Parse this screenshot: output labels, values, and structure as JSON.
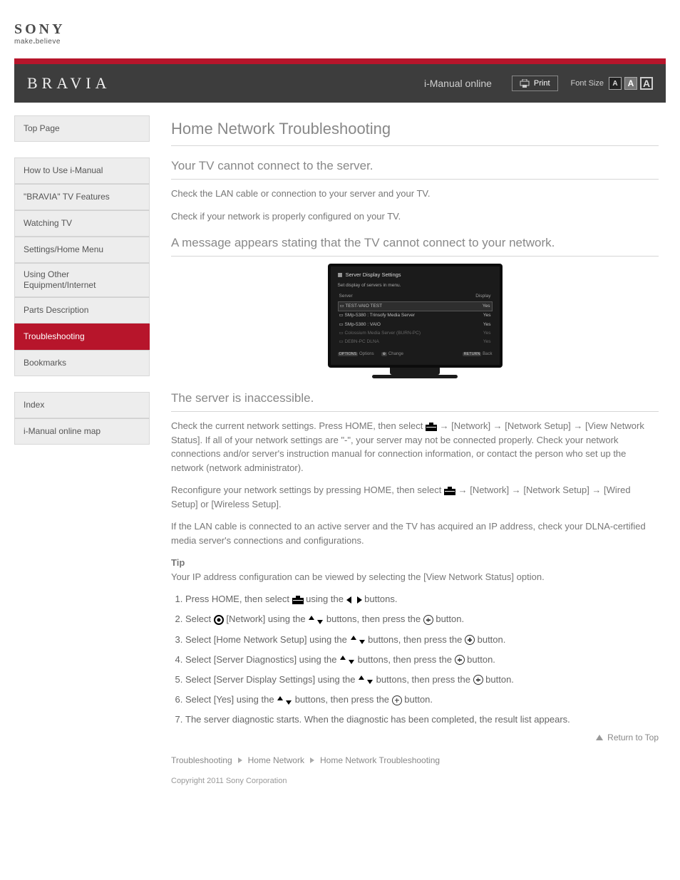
{
  "brand": {
    "name": "SONY",
    "tagline_pre": "make",
    "tagline_dot": ".",
    "tagline_post": "believe"
  },
  "header": {
    "product": "BRAVIA",
    "imanual": "i-Manual online",
    "print": "Print",
    "font_label": "Font Size",
    "font_a": "A"
  },
  "colors": {
    "brand_red": "#b7152b",
    "bar_grey": "#3d3d3d",
    "text_grey": "#666666"
  },
  "sidebar": {
    "top": [
      {
        "label": "Top Page"
      }
    ],
    "toc": [
      {
        "label": "How to Use i-Manual"
      },
      {
        "label": "\"BRAVIA\" TV Features"
      },
      {
        "label": "Watching TV"
      },
      {
        "label": "Settings/Home Menu"
      },
      {
        "label": "Using Other Equipment/Internet"
      },
      {
        "label": "Parts Description"
      },
      {
        "label": "Troubleshooting",
        "active": true
      },
      {
        "label": "Bookmarks"
      }
    ],
    "aux": [
      {
        "label": "Index"
      },
      {
        "label": "i-Manual online map"
      }
    ]
  },
  "main": {
    "title": "Home Network Troubleshooting",
    "sections": [
      {
        "heading": "Your TV cannot connect to the server.",
        "paras": [
          "Check the LAN cable or connection to your server and your TV.",
          "Check if your network is properly configured on your TV."
        ]
      }
    ],
    "section2": {
      "heading": "A message appears stating that the TV cannot connect to your network.",
      "lead": "Check the current network settings. Press HOME, then select ",
      "lead2": " → [Network] → [Network Setup] → [View Network Status]. If all of your network settings are \"-\", your server may not be connected properly. Check your network connections and/or server's instruction manual for connection information, or contact the person who set up the network (network administrator).",
      "lead3": "Reconfigure your network settings by pressing HOME, then select ",
      "lead4": " → [Network] → [Network Setup] → [Wired Setup] or [Wireless Setup].",
      "lead5": "If the LAN cable is connected to an active server and the TV has acquired an IP address, check your DLNA-certified media server's connections and configurations.",
      "tip_label": "Tip",
      "tip_body": "Your IP address configuration can be viewed by selecting the [View Network Status] option."
    },
    "section3": {
      "heading": "The server is inaccessible.",
      "steps": [
        {
          "pre": "Press HOME, then select ",
          "post_toolbox": " using the ",
          "post_arr": " buttons."
        },
        {
          "pre": "Select ",
          "globe": true,
          "mid": " [Network] using the ",
          "post": " buttons, then press the ",
          "tail": " button."
        },
        {
          "pre": "Select [Home Network Setup] using the ",
          "post": " buttons, then press the ",
          "tail": " button."
        },
        {
          "pre": "Select [Server Diagnostics] using the ",
          "post": " buttons, then press the ",
          "tail": " button."
        },
        {
          "pre": "Select [Server Display Settings] using the ",
          "post": " buttons, then press the ",
          "tail": " button."
        },
        {
          "pre": "Select [Yes] using the ",
          "post": " buttons, then press the ",
          "tail": " button."
        },
        {
          "single": "The server diagnostic starts. When the diagnostic has been completed, the result list appears."
        }
      ]
    },
    "tv": {
      "title": "Server Display Settings",
      "sub": "Set display of servers in menu.",
      "head_l": "Server",
      "head_r": "Display",
      "rows": [
        {
          "l": "TEST-VAIO TEST",
          "r": "Yes",
          "sel": true
        },
        {
          "l": "SMp-5380 : Trinsofy Media Server",
          "r": "Yes"
        },
        {
          "l": "SMp-5380 : VAIO",
          "r": "Yes"
        },
        {
          "l": "Colossium Media Server (BURN-PC)",
          "r": "Yes",
          "dim": true
        },
        {
          "l": "DEBN-PC DLNA",
          "r": "Yes",
          "dim": true
        }
      ],
      "foot_opts": "Options",
      "foot_chg": "Change",
      "foot_back": "Back"
    }
  },
  "toplink": {
    "label": "Return to Top"
  },
  "breadcrumb": {
    "a": "Troubleshooting",
    "b": "Home Network",
    "c": "Home Network Troubleshooting"
  },
  "copyright": "Copyright 2011 Sony Corporation"
}
